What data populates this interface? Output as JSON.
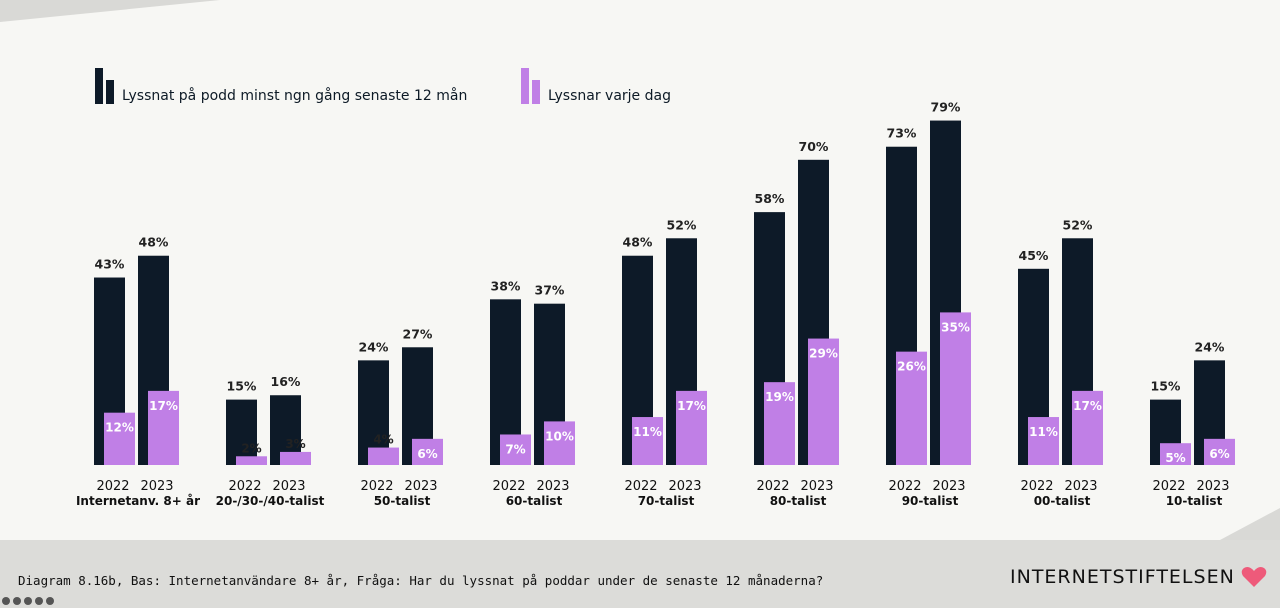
{
  "colors": {
    "dark": "#0d1a28",
    "purple": "#c07fe6",
    "text": "#222222",
    "brand_heart": "#ee5a7a"
  },
  "legend": {
    "series1_label": "Lyssnat på podd minst ngn gång senaste 12 mån",
    "series2_label": "Lyssnar varje dag"
  },
  "caption": "Diagram 8.16b, Bas: Internetanvändare 8+ år, Fråga: Har du lyssnat på poddar under de senaste 12 månaderna?",
  "brand": {
    "name": "INTERNETSTIFTELSEN",
    "icon": "heart-icon"
  },
  "chart_data": {
    "type": "bar",
    "unit": "%",
    "groups": [
      "Internetanv. 8+ år",
      "20-/30-/40-talist",
      "50-talist",
      "60-talist",
      "70-talist",
      "80-talist",
      "90-talist",
      "00-talist",
      "10-talist"
    ],
    "years": [
      "2022",
      "2023"
    ],
    "series": [
      {
        "name": "Lyssnat på podd minst ngn gång senaste 12 mån",
        "values_2022": [
          43,
          15,
          24,
          38,
          48,
          58,
          73,
          45,
          15
        ],
        "values_2023": [
          48,
          16,
          27,
          37,
          52,
          70,
          79,
          52,
          24
        ]
      },
      {
        "name": "Lyssnar varje dag",
        "values_2022": [
          12,
          2,
          4,
          7,
          11,
          19,
          26,
          11,
          5
        ],
        "values_2023": [
          17,
          3,
          6,
          10,
          17,
          29,
          35,
          17,
          6
        ]
      }
    ]
  }
}
